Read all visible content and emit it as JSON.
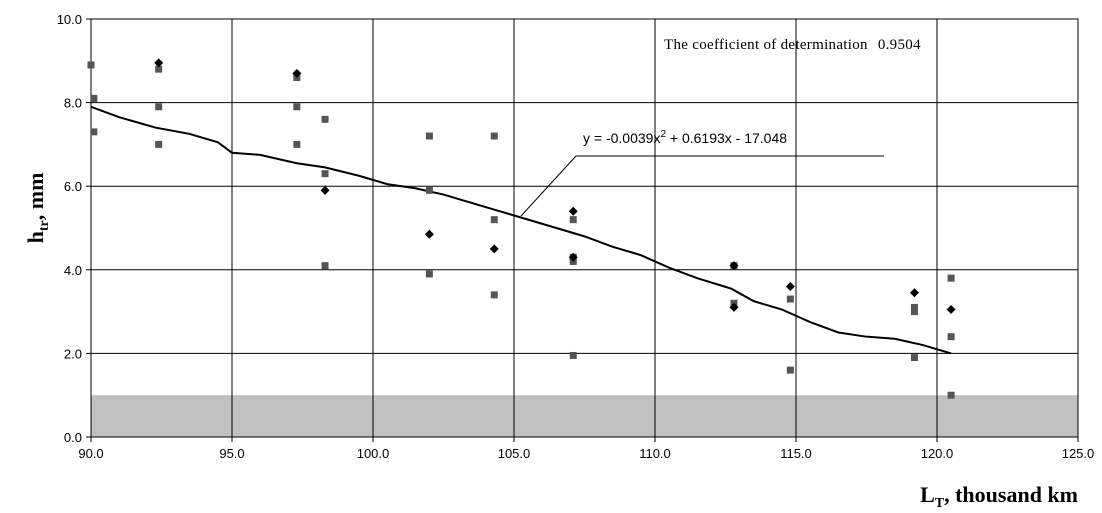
{
  "chart_data": {
    "type": "scatter",
    "xlim": [
      90,
      125
    ],
    "ylim": [
      0,
      10
    ],
    "xticks": [
      "90.0",
      "95.0",
      "100.0",
      "105.0",
      "110.0",
      "115.0",
      "120.0",
      "125.0"
    ],
    "yticks": [
      "0.0",
      "2.0",
      "4.0",
      "6.0",
      "8.0",
      "10.0"
    ],
    "ylabel_main": "h",
    "ylabel_sub": "tr",
    "ylabel_unit": ", mm",
    "xlabel_main": "L",
    "xlabel_sub": "T",
    "xlabel_unit": ", thousand km",
    "grid": true,
    "shaded_band": {
      "from": 0,
      "to": 1,
      "color": "#c0c0c0"
    },
    "r2_label": "The coefficient of determination",
    "r2_value": "0.9504",
    "equation": {
      "prefix": "y = -0.0039x",
      "exp": "2",
      "suffix": " + 0.6193x - 17.048"
    },
    "trendline": {
      "x": [
        90.0,
        91.0,
        92.3,
        93.5,
        94.5,
        95.0,
        96.0,
        97.3,
        98.3,
        99.5,
        100.5,
        101.5,
        102.5,
        103.5,
        104.5,
        105.5,
        106.5,
        107.5,
        108.5,
        109.5,
        110.5,
        111.5,
        112.7,
        113.5,
        114.5,
        115.5,
        116.5,
        117.5,
        118.5,
        119.5,
        120.5
      ],
      "y": [
        7.9,
        7.65,
        7.4,
        7.25,
        7.05,
        6.8,
        6.75,
        6.55,
        6.45,
        6.25,
        6.05,
        5.95,
        5.8,
        5.6,
        5.4,
        5.2,
        5.0,
        4.8,
        4.55,
        4.35,
        4.05,
        3.8,
        3.55,
        3.25,
        3.05,
        2.75,
        2.5,
        2.4,
        2.35,
        2.2,
        2.0
      ]
    },
    "series": [
      {
        "marker": "square",
        "color": "#555555",
        "points": [
          [
            90.0,
            8.9
          ],
          [
            90.1,
            8.1
          ],
          [
            90.1,
            7.3
          ],
          [
            92.4,
            8.8
          ],
          [
            92.4,
            7.9
          ],
          [
            92.4,
            7.0
          ],
          [
            97.3,
            8.6
          ],
          [
            97.3,
            7.9
          ],
          [
            97.3,
            7.0
          ],
          [
            98.3,
            7.6
          ],
          [
            98.3,
            6.3
          ],
          [
            98.3,
            4.1
          ],
          [
            102.0,
            7.2
          ],
          [
            102.0,
            5.9
          ],
          [
            102.0,
            3.9
          ],
          [
            104.3,
            7.2
          ],
          [
            104.3,
            5.2
          ],
          [
            104.3,
            3.4
          ],
          [
            107.1,
            5.2
          ],
          [
            107.1,
            4.3
          ],
          [
            107.1,
            4.2
          ],
          [
            107.1,
            1.95
          ],
          [
            112.8,
            4.1
          ],
          [
            112.8,
            3.2
          ],
          [
            114.8,
            3.3
          ],
          [
            114.8,
            1.6
          ],
          [
            119.2,
            3.1
          ],
          [
            119.2,
            3.0
          ],
          [
            119.2,
            1.9
          ],
          [
            120.5,
            3.8
          ],
          [
            120.5,
            2.4
          ],
          [
            120.5,
            1.0
          ]
        ]
      },
      {
        "marker": "diamond",
        "color": "#000000",
        "points": [
          [
            92.4,
            8.95
          ],
          [
            97.3,
            8.7
          ],
          [
            98.3,
            5.9
          ],
          [
            102.0,
            4.85
          ],
          [
            104.3,
            4.5
          ],
          [
            107.1,
            5.4
          ],
          [
            107.1,
            4.3
          ],
          [
            112.8,
            4.1
          ],
          [
            112.8,
            3.1
          ],
          [
            114.8,
            3.6
          ],
          [
            119.2,
            3.45
          ],
          [
            120.5,
            3.05
          ]
        ]
      }
    ]
  }
}
